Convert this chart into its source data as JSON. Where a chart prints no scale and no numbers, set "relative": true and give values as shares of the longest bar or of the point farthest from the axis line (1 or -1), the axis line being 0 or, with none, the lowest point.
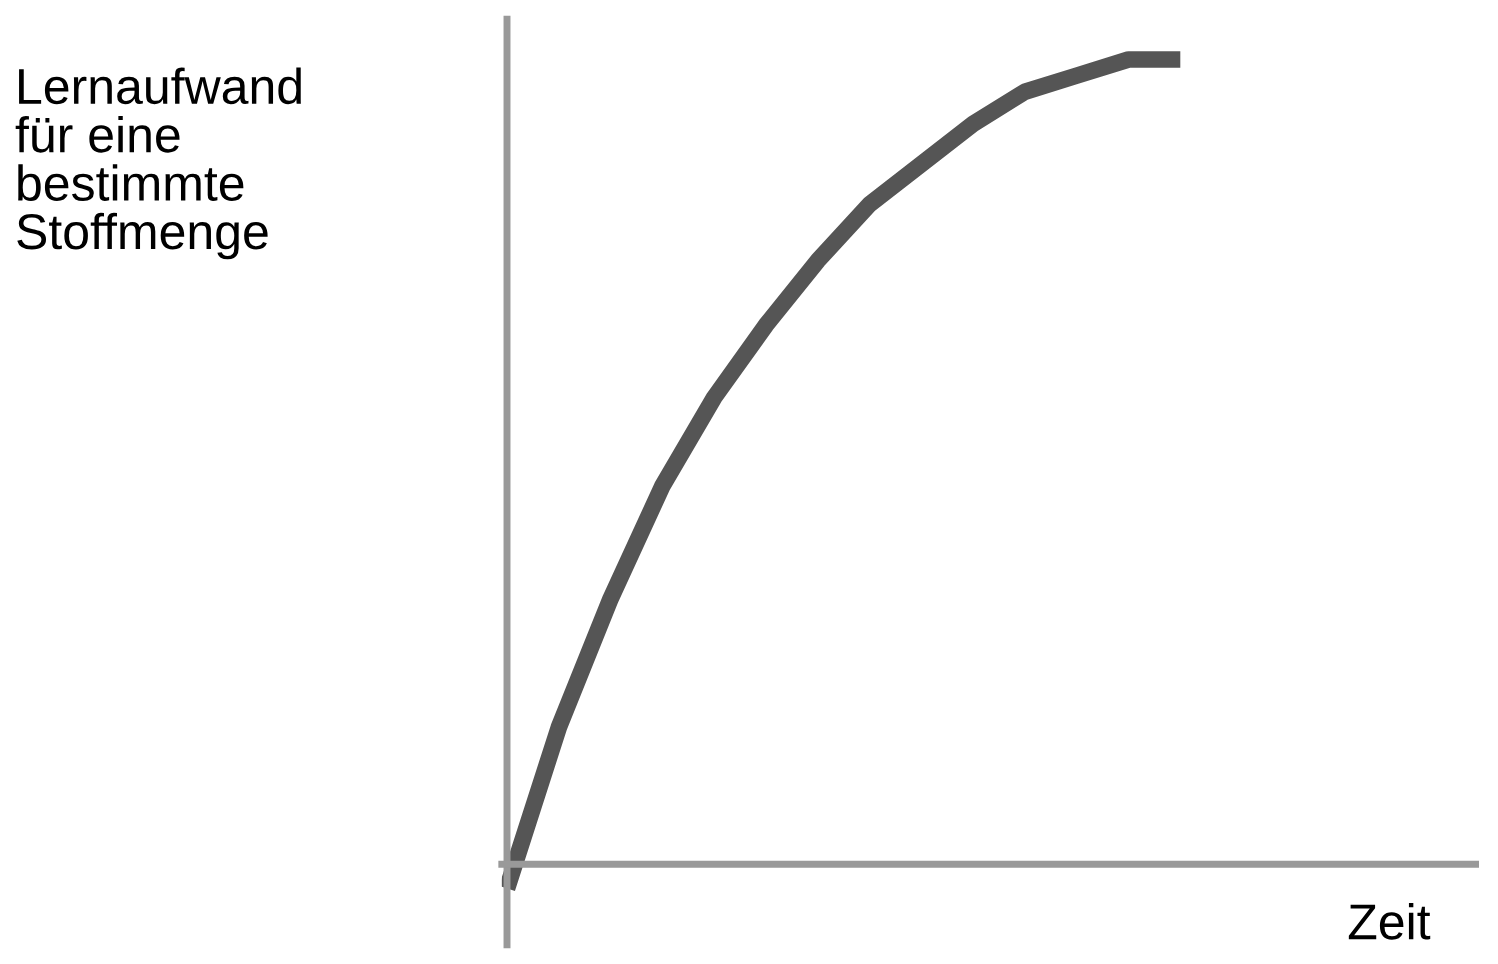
{
  "chart_data": {
    "type": "line",
    "relative": true,
    "ylabel": "Lernaufwand\nfür eine\nbestimmte\nStoffmenge",
    "xlabel": "Zeit",
    "categories": [
      null,
      null,
      null,
      null,
      null,
      null,
      null,
      null,
      null,
      null,
      null,
      null,
      null,
      null,
      null,
      null,
      null,
      null,
      null
    ],
    "series": [
      {
        "color": "#555555",
        "values": [
          -0.03,
          0.17,
          0.33,
          0.47,
          0.58,
          0.67,
          0.75,
          0.82,
          0.87,
          0.92,
          0.96,
          0.98,
          1.0,
          1.0,
          null,
          null,
          null,
          null,
          null
        ]
      }
    ],
    "grid": false,
    "legend": false
  }
}
